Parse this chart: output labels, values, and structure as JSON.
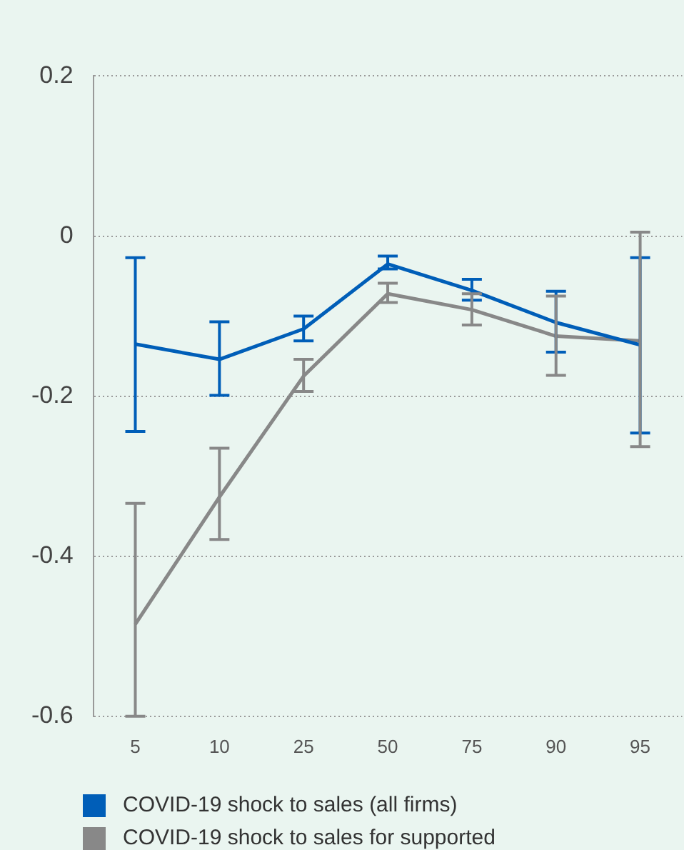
{
  "chart_data": {
    "type": "line",
    "categories": [
      "5",
      "10",
      "25",
      "50",
      "75",
      "90",
      "95"
    ],
    "series": [
      {
        "name": "COVID-19 shock to sales (all firms)",
        "color": "#005eb8",
        "values": [
          -0.135,
          -0.154,
          -0.116,
          -0.035,
          -0.068,
          -0.108,
          -0.136
        ],
        "errors": [
          [
            -0.244,
            -0.027
          ],
          [
            -0.199,
            -0.107
          ],
          [
            -0.131,
            -0.1
          ],
          [
            -0.041,
            -0.025
          ],
          [
            -0.08,
            -0.054
          ],
          [
            -0.145,
            -0.069
          ],
          [
            -0.246,
            -0.027
          ]
        ]
      },
      {
        "name": "COVID-19 shock to sales for  supported",
        "color": "#888888",
        "values": [
          -0.485,
          -0.326,
          -0.175,
          -0.072,
          -0.092,
          -0.125,
          -0.131
        ],
        "errors": [
          [
            -0.6,
            -0.334
          ],
          [
            -0.379,
            -0.265
          ],
          [
            -0.194,
            -0.154
          ],
          [
            -0.083,
            -0.059
          ],
          [
            -0.111,
            -0.072
          ],
          [
            -0.174,
            -0.075
          ],
          [
            -0.263,
            0.005
          ]
        ]
      }
    ],
    "ylim": [
      -0.6,
      0.2
    ],
    "yticks": [
      -0.6,
      -0.4,
      -0.2,
      0,
      0.2
    ],
    "grid": "y",
    "legend": "bottom",
    "marker": "none",
    "line_style": "solid"
  }
}
